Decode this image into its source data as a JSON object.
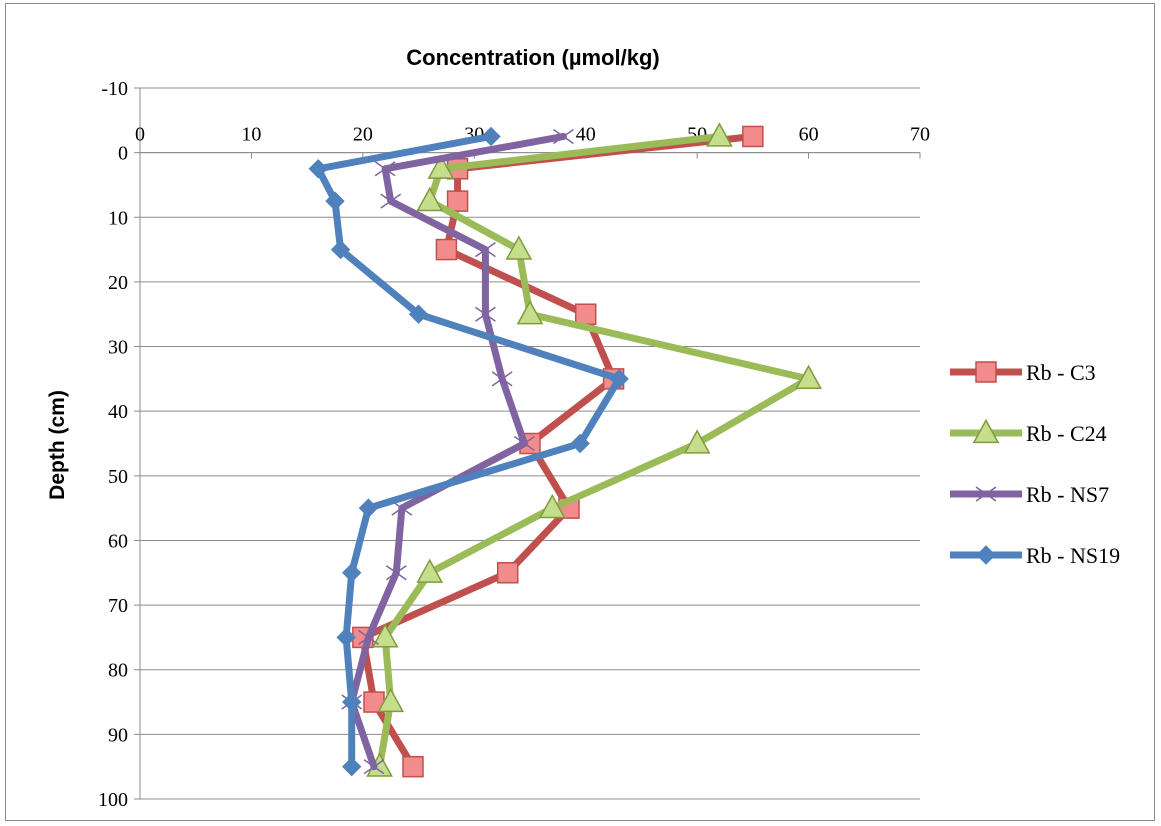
{
  "chart_data": {
    "type": "line",
    "title": "Concentration (µmol/kg)",
    "xlabel": "",
    "ylabel": "Depth (cm)",
    "xlim": [
      0,
      70
    ],
    "ylim": [
      -10,
      100
    ],
    "y_reversed": true,
    "x_axis_position": "top (at depth 0)",
    "x_ticks": [
      "0",
      "10",
      "20",
      "30",
      "40",
      "50",
      "60",
      "70"
    ],
    "y_ticks": [
      "-10",
      "0",
      "10",
      "20",
      "30",
      "40",
      "50",
      "60",
      "70",
      "80",
      "90",
      "100"
    ],
    "grid": "horizontal",
    "legend_position": "right",
    "series": [
      {
        "name": "Rb - C3",
        "color": "#C0504D",
        "marker_fill": "#F28C8C",
        "marker": "square",
        "points": [
          [
            55,
            -2.5
          ],
          [
            28.5,
            2.5
          ],
          [
            28.5,
            7.5
          ],
          [
            27.5,
            15
          ],
          [
            40,
            25
          ],
          [
            42.5,
            35
          ],
          [
            35,
            45
          ],
          [
            38.5,
            55
          ],
          [
            33,
            65
          ],
          [
            20,
            75
          ],
          [
            21,
            85
          ],
          [
            24.5,
            95
          ]
        ]
      },
      {
        "name": "Rb - C24",
        "color": "#9BBB59",
        "marker_fill": "#C4DE8C",
        "marker": "triangle",
        "points": [
          [
            52,
            -2.5
          ],
          [
            27,
            2.5
          ],
          [
            26,
            7.5
          ],
          [
            34,
            15
          ],
          [
            35,
            25
          ],
          [
            60,
            35
          ],
          [
            50,
            45
          ],
          [
            37,
            55
          ],
          [
            26,
            65
          ],
          [
            22,
            75
          ],
          [
            22.5,
            85
          ],
          [
            21.5,
            95
          ]
        ]
      },
      {
        "name": "Rb - NS7",
        "color": "#8064A2",
        "marker_fill": "#8064A2",
        "marker": "x",
        "points": [
          [
            38,
            -2.5
          ],
          [
            22,
            2.5
          ],
          [
            22.5,
            7.5
          ],
          [
            31,
            15
          ],
          [
            31,
            25
          ],
          [
            32.5,
            35
          ],
          [
            34.5,
            45
          ],
          [
            23.5,
            55
          ],
          [
            23,
            65
          ],
          [
            20.5,
            75
          ],
          [
            19,
            85
          ],
          [
            21,
            95
          ]
        ]
      },
      {
        "name": "Rb - NS19",
        "color": "#4F81BD",
        "marker_fill": "#4F81BD",
        "marker": "diamond",
        "points": [
          [
            31.5,
            -2.5
          ],
          [
            16,
            2.5
          ],
          [
            17.5,
            7.5
          ],
          [
            18,
            15
          ],
          [
            25,
            25
          ],
          [
            43,
            35
          ],
          [
            39.5,
            45
          ],
          [
            20.5,
            55
          ],
          [
            19,
            65
          ],
          [
            18.5,
            75
          ],
          [
            19,
            85
          ],
          [
            19,
            95
          ]
        ]
      }
    ]
  }
}
